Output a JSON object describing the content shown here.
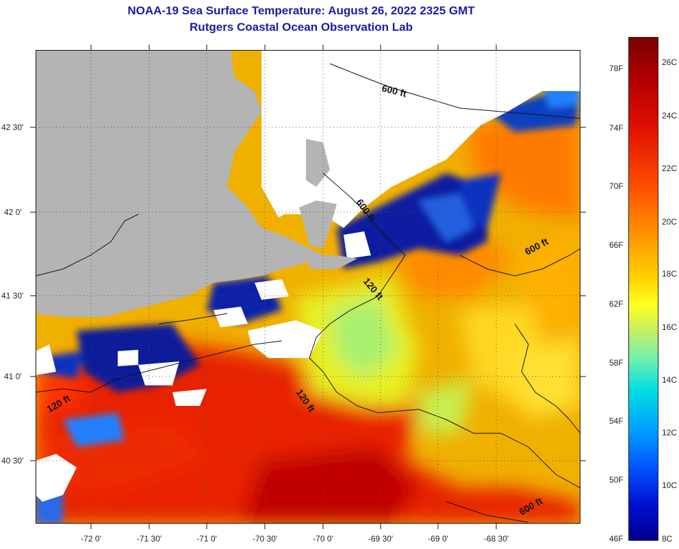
{
  "title": "NOAA-19 Sea Surface Temperature:  August 26, 2022 2325 GMT",
  "subtitle": "Rutgers Coastal Ocean Observation Lab",
  "lat_labels": [
    "42 30'",
    "42 0'",
    "41 30'",
    "41 0'",
    "40 30'"
  ],
  "lon_labels": [
    "-72 0'",
    "-71 30'",
    "-71 0'",
    "-70 30'",
    "-70 0'",
    "-69 30'",
    "-69 0'",
    "-68 30'"
  ],
  "contour_labels": [
    "600 ft",
    "600 ft",
    "600 ft",
    "600 ft",
    "120 ft",
    "120 ft",
    "120 ft"
  ],
  "colorbar": {
    "fahrenheit": [
      "78F",
      "74F",
      "70F",
      "66F",
      "62F",
      "58F",
      "54F",
      "50F",
      "46F"
    ],
    "celsius": [
      "26C",
      "24C",
      "22C",
      "20C",
      "18C",
      "16C",
      "14C",
      "12C",
      "10C",
      "8C"
    ]
  },
  "colors": {
    "title": "#1a1aa8",
    "land": "#b4b4b4",
    "cloud": "#ffffff"
  }
}
